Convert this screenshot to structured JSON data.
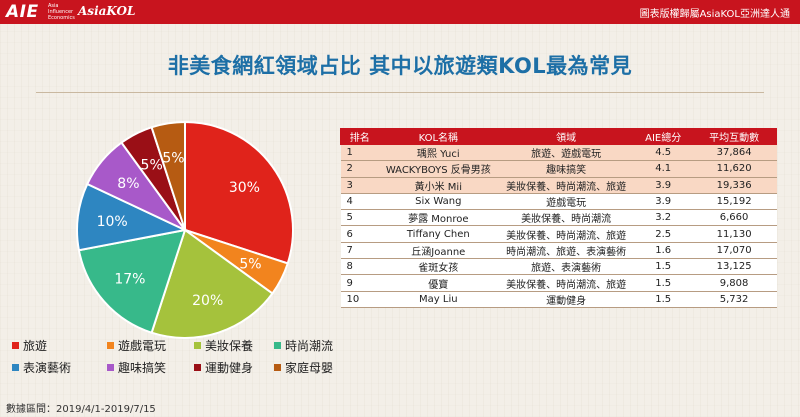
{
  "brand": {
    "aie": "AIE",
    "aie_sub": "Asia Influencer Economics",
    "asiakol": "AsiaKOL"
  },
  "copyright": "圖表版權歸屬AsiaKOL亞洲達人通",
  "title": "非美食網紅領域占比  其中以旅遊類KOL最為常見",
  "footer": "數據區間：2019/4/1-2019/7/15",
  "colors": {
    "topbar": "#c8141e",
    "title": "#1d6fa6",
    "table_header": "#c8141e",
    "row_highlight": "#f9d8c4"
  },
  "chart_data": {
    "type": "pie",
    "slices": [
      {
        "name": "旅遊",
        "value": 30,
        "label": "30%",
        "color": "#e0231b"
      },
      {
        "name": "遊戲電玩",
        "value": 5,
        "label": "5%",
        "color": "#f2841e"
      },
      {
        "name": "美妝保養",
        "value": 20,
        "label": "20%",
        "color": "#a5c23c"
      },
      {
        "name": "時尚潮流",
        "value": 17,
        "label": "17%",
        "color": "#37b98a"
      },
      {
        "name": "表演藝術",
        "value": 10,
        "label": "10%",
        "color": "#2e86c1"
      },
      {
        "name": "趣味搞笑",
        "value": 8,
        "label": "8%",
        "color": "#a859c9"
      },
      {
        "name": "運動健身",
        "value": 5,
        "label": "5%",
        "color": "#9a0f16"
      },
      {
        "name": "家庭母嬰",
        "value": 5,
        "label": "5%",
        "color": "#b65b12"
      }
    ],
    "legend_position": "bottom"
  },
  "table": {
    "headers": [
      "排名",
      "KOL名稱",
      "領域",
      "AIE總分",
      "平均互動數"
    ],
    "rows": [
      {
        "rank": "1",
        "name": "瑀熙 Yuci",
        "field": "旅遊、遊戲電玩",
        "score": "4.5",
        "avg": "37,864",
        "highlight": true
      },
      {
        "rank": "2",
        "name": "WACKYBOYS 反骨男孩",
        "field": "趣味搞笑",
        "score": "4.1",
        "avg": "11,620",
        "highlight": true
      },
      {
        "rank": "3",
        "name": "黃小米 Mii",
        "field": "美妝保養、時尚潮流、旅遊",
        "score": "3.9",
        "avg": "19,336",
        "highlight": true
      },
      {
        "rank": "4",
        "name": "Six Wang",
        "field": "遊戲電玩",
        "score": "3.9",
        "avg": "15,192",
        "highlight": false
      },
      {
        "rank": "5",
        "name": "夢露 Monroe",
        "field": "美妝保養、時尚潮流",
        "score": "3.2",
        "avg": "6,660",
        "highlight": false
      },
      {
        "rank": "6",
        "name": "Tiffany Chen",
        "field": "美妝保養、時尚潮流、旅遊",
        "score": "2.5",
        "avg": "11,130",
        "highlight": false
      },
      {
        "rank": "7",
        "name": "丘涵Joanne",
        "field": "時尚潮流、旅遊、表演藝術",
        "score": "1.6",
        "avg": "17,070",
        "highlight": false
      },
      {
        "rank": "8",
        "name": "雀斑女孩",
        "field": "旅遊、表演藝術",
        "score": "1.5",
        "avg": "13,125",
        "highlight": false
      },
      {
        "rank": "9",
        "name": "優寶",
        "field": "美妝保養、時尚潮流、旅遊",
        "score": "1.5",
        "avg": "9,808",
        "highlight": false
      },
      {
        "rank": "10",
        "name": "May Liu",
        "field": "運動健身",
        "score": "1.5",
        "avg": "5,732",
        "highlight": false
      }
    ]
  }
}
